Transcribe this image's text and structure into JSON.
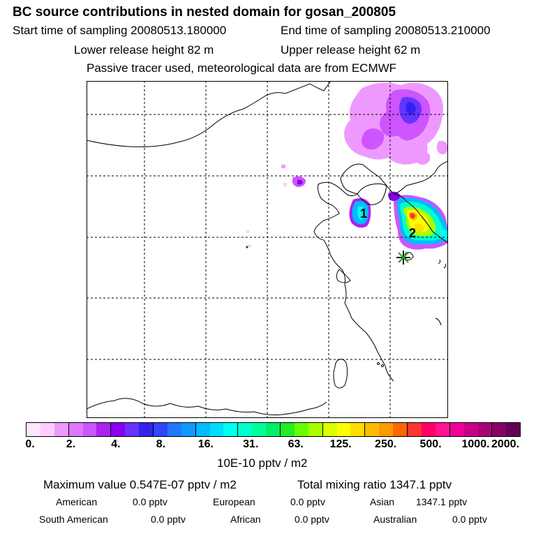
{
  "title": "BC  source contributions in nested domain for gosan_200805",
  "sampling": {
    "start": "Start time of sampling 20080513.180000",
    "end": "End time of sampling 20080513.210000"
  },
  "release": {
    "lower": "Lower release height   82 m",
    "upper": "Upper release height   62 m"
  },
  "tracer_note": "Passive tracer used, meteorological data are from ECMWF",
  "map": {
    "region_labels": [
      "1",
      "2"
    ],
    "receptor_marker": "star-icon"
  },
  "colorbar": {
    "colors": [
      "#ffe6ff",
      "#ffccff",
      "#ee99ff",
      "#dd77ff",
      "#cc55ff",
      "#aa22ee",
      "#8800ee",
      "#6633ff",
      "#3322ee",
      "#3344ff",
      "#2277ff",
      "#1199ff",
      "#00bbff",
      "#00ddff",
      "#00ffee",
      "#00ffcc",
      "#00ff99",
      "#00ee66",
      "#22ee22",
      "#66ff00",
      "#aaff00",
      "#ddff00",
      "#ffff00",
      "#ffdd00",
      "#ffbb00",
      "#ff9900",
      "#ff6600",
      "#ff3333",
      "#ff0066",
      "#ff1493",
      "#ee0099",
      "#cc0088",
      "#aa0077",
      "#880066",
      "#660055"
    ],
    "tick_labels": [
      "0.",
      "2.",
      "4.",
      "8.",
      "16.",
      "31.",
      "63.",
      "125.",
      "250.",
      "500.",
      "1000.",
      "2000."
    ],
    "units": "10E-10 pptv / m2"
  },
  "summary": {
    "maximum": "Maximum value  0.547E-07 pptv / m2",
    "total": "Total mixing ratio     1347.1 pptv",
    "sources": [
      {
        "name": "American",
        "value": "0.0 pptv"
      },
      {
        "name": "European",
        "value": "0.0 pptv"
      },
      {
        "name": "Asian",
        "value": "1347.1 pptv"
      },
      {
        "name": "South American",
        "value": "0.0 pptv"
      },
      {
        "name": "African",
        "value": "0.0 pptv"
      },
      {
        "name": "Australian",
        "value": "0.0 pptv"
      }
    ]
  }
}
